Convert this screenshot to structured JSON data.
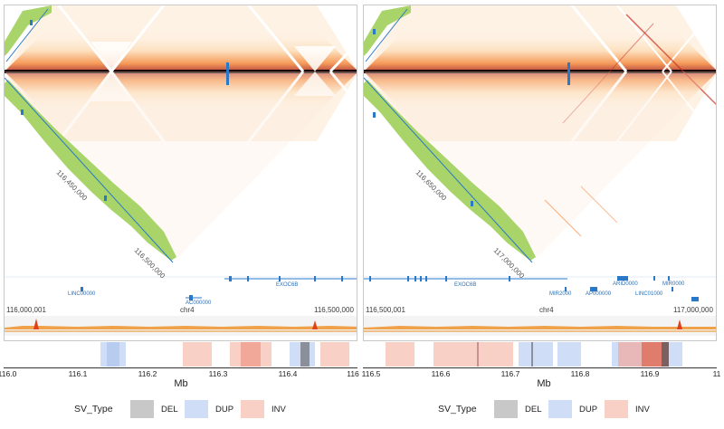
{
  "left_panel": {
    "coord_start": "116,000,001",
    "chrom": "chr4",
    "coord_end": "116,500,000",
    "diag_label_1": "116,450,000",
    "diag_label_2": "116,500,000",
    "genes": [
      "EXOC6B"
    ],
    "small_gene_labels": [
      "LINC00000",
      "AC000000"
    ]
  },
  "right_panel": {
    "coord_start": "116,500,001",
    "chrom": "chr4",
    "coord_end": "117,000,000",
    "diag_label_1": "116,650,000",
    "diag_label_2": "117,000,000",
    "genes": [
      "EXOC6B"
    ],
    "small_gene_labels": [
      "MIR2000",
      "AP000000",
      "LINC01000",
      "ARID0000",
      "MIR0000"
    ]
  },
  "sv_axis": {
    "label": "Mb",
    "left_ticks": [
      "116.0",
      "116.1",
      "116.2",
      "116.3",
      "116.4",
      "116"
    ],
    "right_ticks": [
      "116.5",
      "116.6",
      "116.7",
      "116.8",
      "116.9",
      "11"
    ]
  },
  "legend": {
    "title": "SV_Type",
    "items": [
      {
        "label": "DEL",
        "color": "#c8c8c8"
      },
      {
        "label": "DUP",
        "color": "#cfddf7"
      },
      {
        "label": "INV",
        "color": "#f9d0c6"
      }
    ]
  },
  "colors": {
    "heatmap_core": "#2b0000",
    "heatmap_mid": "#e0401a",
    "heatmap_light": "#fbb46a",
    "track_green": "#a8d46a",
    "gene_blue": "#2a78c8",
    "signal_orange": "#e88a1a"
  }
}
